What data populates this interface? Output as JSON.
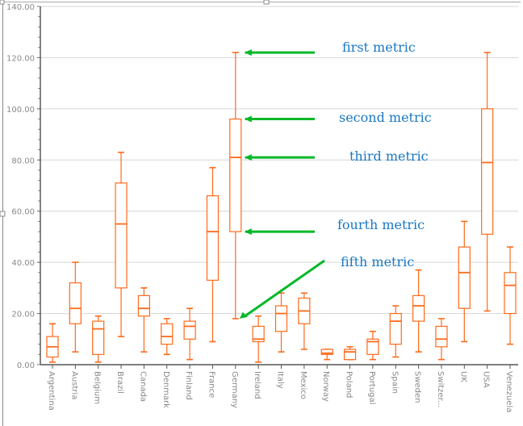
{
  "chart_data": {
    "type": "boxplot",
    "title": "",
    "xlabel": "",
    "ylabel": "",
    "ylim": [
      0,
      140
    ],
    "ytick_step": 20,
    "ytick_labels": [
      "0.00",
      "20.00",
      "40.00",
      "60.00",
      "80.00",
      "100.00",
      "120.00",
      "140.00"
    ],
    "grid": true,
    "box_color": "#ff6a1a",
    "annotation_color": "#1a78c2",
    "arrow_color": "#00b828",
    "categories": [
      "Argentina",
      "Austria",
      "Belgium",
      "Brazil",
      "Canada",
      "Denmark",
      "Finland",
      "France",
      "Germany",
      "Ireland",
      "Italy",
      "Mexico",
      "Norway",
      "Poland",
      "Portugal",
      "Spain",
      "Sweden",
      "Switzer...",
      "UK",
      "USA",
      "Venezuela"
    ],
    "boxes": [
      {
        "min": 1,
        "q1": 3,
        "median": 7,
        "q3": 11,
        "max": 16
      },
      {
        "min": 5,
        "q1": 16,
        "median": 22,
        "q3": 32,
        "max": 40
      },
      {
        "min": 1,
        "q1": 4,
        "median": 14,
        "q3": 17,
        "max": 19
      },
      {
        "min": 11,
        "q1": 30,
        "median": 55,
        "q3": 71,
        "max": 83
      },
      {
        "min": 5,
        "q1": 19,
        "median": 22,
        "q3": 27,
        "max": 30
      },
      {
        "min": 4,
        "q1": 8,
        "median": 11,
        "q3": 16,
        "max": 18
      },
      {
        "min": 2,
        "q1": 10,
        "median": 15,
        "q3": 17,
        "max": 22
      },
      {
        "min": 9,
        "q1": 33,
        "median": 52,
        "q3": 66,
        "max": 77
      },
      {
        "min": 18,
        "q1": 52,
        "median": 81,
        "q3": 96,
        "max": 122
      },
      {
        "min": 1,
        "q1": 9,
        "median": 10,
        "q3": 15,
        "max": 19
      },
      {
        "min": 5,
        "q1": 13,
        "median": 20,
        "q3": 23,
        "max": 28
      },
      {
        "min": 6,
        "q1": 16,
        "median": 21,
        "q3": 26,
        "max": 28
      },
      {
        "min": 2,
        "q1": 4,
        "median": 4.5,
        "q3": 6,
        "max": 6
      },
      {
        "min": 2,
        "q1": 2,
        "median": 5,
        "q3": 6,
        "max": 7
      },
      {
        "min": 2,
        "q1": 4,
        "median": 9,
        "q3": 10,
        "max": 13
      },
      {
        "min": 3,
        "q1": 8,
        "median": 17,
        "q3": 20,
        "max": 23
      },
      {
        "min": 5,
        "q1": 17,
        "median": 23,
        "q3": 27,
        "max": 37
      },
      {
        "min": 2,
        "q1": 7,
        "median": 10,
        "q3": 15,
        "max": 18
      },
      {
        "min": 9,
        "q1": 22,
        "median": 36,
        "q3": 46,
        "max": 56
      },
      {
        "min": 21,
        "q1": 51,
        "median": 79,
        "q3": 100,
        "max": 122
      },
      {
        "min": 8,
        "q1": 20,
        "median": 31,
        "q3": 36,
        "max": 46
      }
    ],
    "annotations": [
      {
        "text": "first metric",
        "points_to": "max",
        "category": "Germany"
      },
      {
        "text": "second metric",
        "points_to": "q3",
        "category": "Germany"
      },
      {
        "text": "third metric",
        "points_to": "median",
        "category": "Germany"
      },
      {
        "text": "fourth metric",
        "points_to": "q1",
        "category": "Germany"
      },
      {
        "text": "fifth metric",
        "points_to": "min",
        "category": "Germany"
      }
    ]
  }
}
